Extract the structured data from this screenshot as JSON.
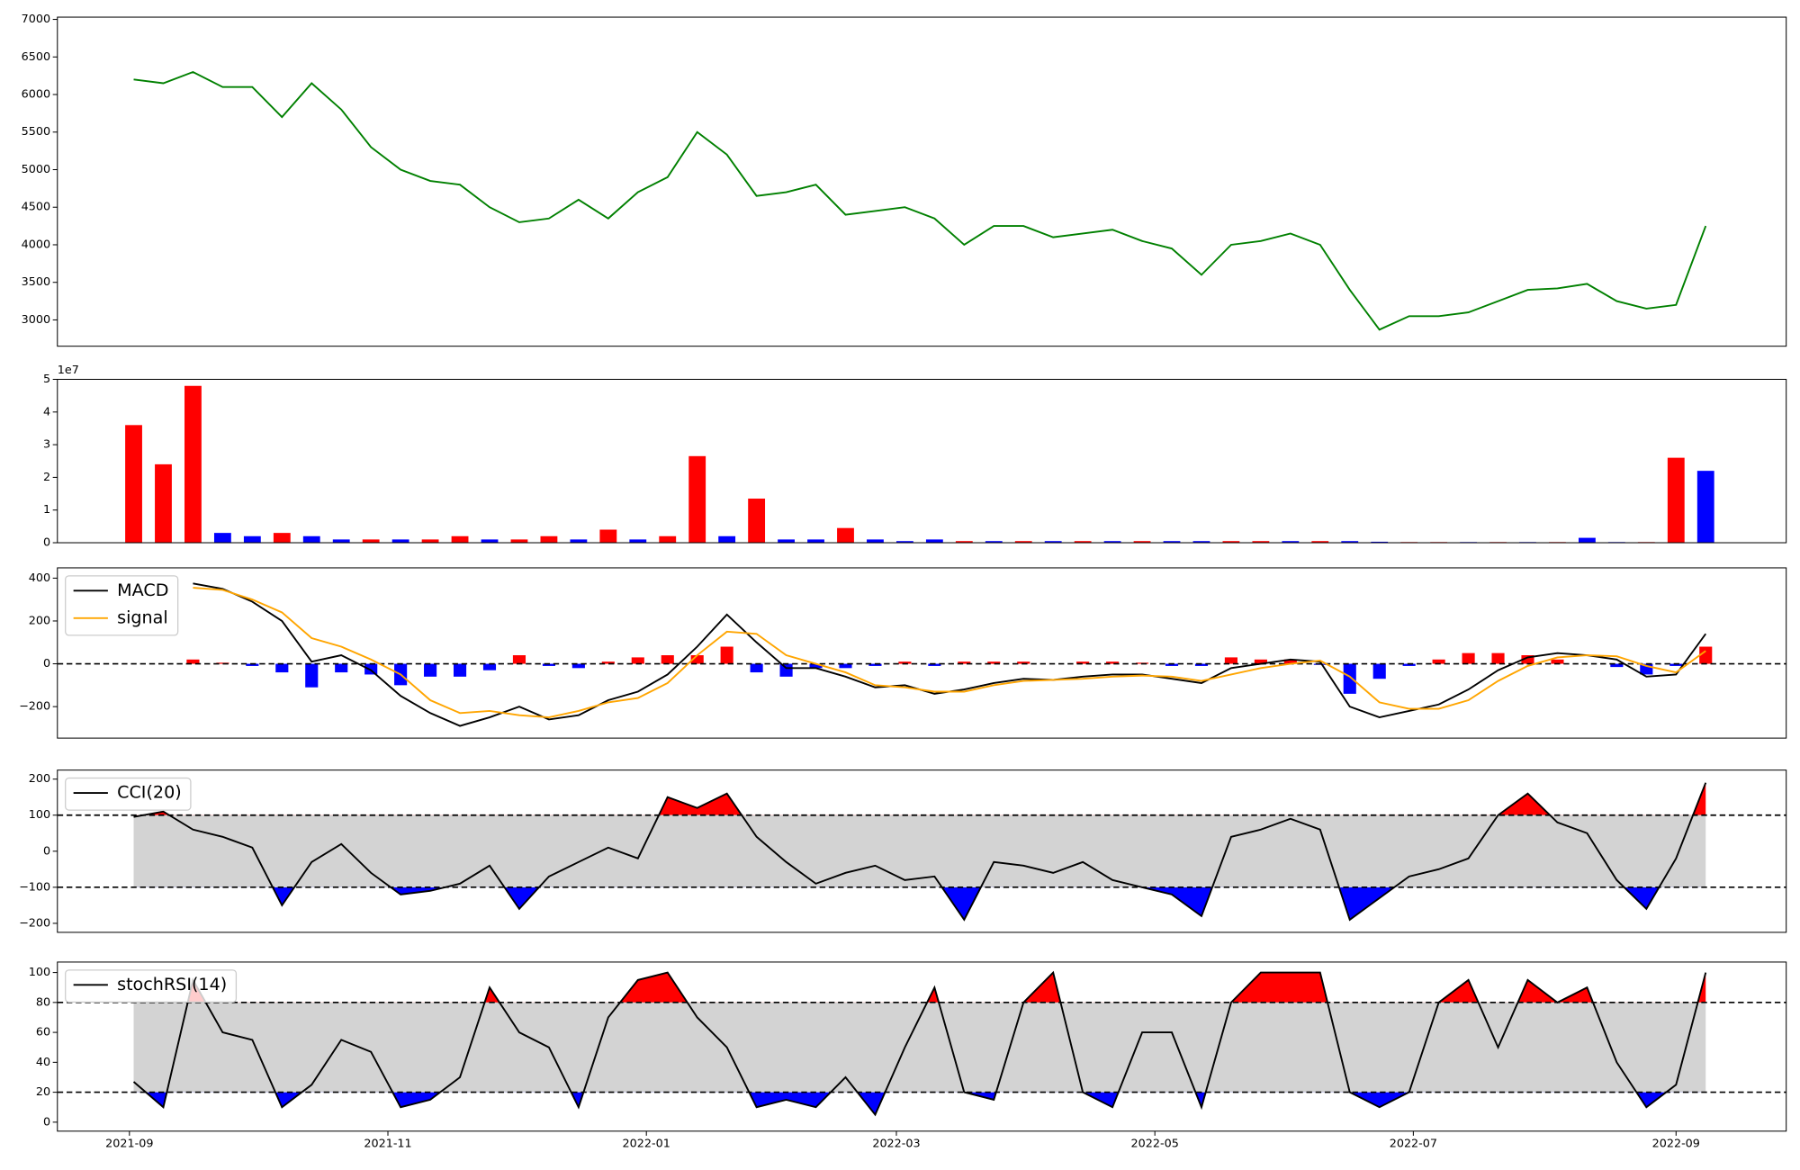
{
  "chart_data": [
    {
      "type": "line",
      "color": "green",
      "x": [
        1,
        8,
        15,
        22,
        29,
        36,
        43,
        50,
        57,
        64,
        71,
        78,
        85,
        92,
        99,
        106,
        113,
        120,
        127,
        134,
        141,
        148,
        155,
        162,
        169,
        176,
        183,
        190,
        197,
        204,
        211,
        218,
        225,
        232,
        239,
        246,
        253,
        260,
        267,
        274,
        281,
        288,
        295,
        302,
        309,
        316,
        323,
        330,
        337,
        344,
        351,
        358,
        365,
        372
      ],
      "values": [
        6200,
        6150,
        6300,
        6100,
        6100,
        5700,
        6150,
        5800,
        5300,
        5000,
        4850,
        4800,
        4500,
        4300,
        4350,
        4600,
        4350,
        4700,
        4900,
        5500,
        5200,
        4650,
        4700,
        4800,
        4400,
        4450,
        4500,
        4350,
        4000,
        4250,
        4250,
        4100,
        4150,
        4200,
        4050,
        3950,
        3600,
        4000,
        4050,
        4150,
        4000,
        3400,
        2870,
        3050,
        3050,
        3100,
        3250,
        3400,
        3420,
        3480,
        3250,
        3150,
        3200,
        4250
      ],
      "xlim": [
        -17,
        391
      ],
      "ylim": [
        2650,
        7030
      ],
      "yticks": [
        3000,
        3500,
        4000,
        4500,
        5000,
        5500,
        6000,
        6500,
        7000
      ]
    },
    {
      "type": "bar",
      "scale_label": "1e7",
      "x": [
        1,
        8,
        15,
        22,
        29,
        36,
        43,
        50,
        57,
        64,
        71,
        78,
        85,
        92,
        99,
        106,
        113,
        120,
        127,
        134,
        141,
        148,
        155,
        162,
        169,
        176,
        183,
        190,
        197,
        204,
        211,
        218,
        225,
        232,
        239,
        246,
        253,
        260,
        267,
        274,
        281,
        288,
        295,
        302,
        309,
        316,
        323,
        330,
        337,
        344,
        351,
        358,
        365,
        372
      ],
      "values": [
        3.6,
        2.4,
        4.8,
        0.3,
        0.2,
        0.3,
        0.2,
        0.1,
        0.1,
        0.1,
        0.1,
        0.2,
        0.1,
        0.1,
        0.2,
        0.1,
        0.4,
        0.1,
        0.2,
        2.65,
        0.2,
        1.35,
        0.1,
        0.1,
        0.45,
        0.1,
        0.05,
        0.1,
        0.05,
        0.05,
        0.05,
        0.05,
        0.05,
        0.05,
        0.05,
        0.05,
        0.05,
        0.05,
        0.05,
        0.05,
        0.05,
        0.05,
        0.03,
        0.02,
        0.02,
        0.02,
        0.02,
        0.02,
        0.02,
        0.15,
        0.02,
        0.02,
        2.6,
        2.2
      ],
      "colors": [
        "red",
        "red",
        "red",
        "blue",
        "blue",
        "red",
        "blue",
        "blue",
        "red",
        "blue",
        "red",
        "red",
        "blue",
        "red",
        "red",
        "blue",
        "red",
        "blue",
        "red",
        "red",
        "blue",
        "red",
        "blue",
        "blue",
        "red",
        "blue",
        "blue",
        "blue",
        "red",
        "blue",
        "red",
        "blue",
        "red",
        "blue",
        "red",
        "blue",
        "blue",
        "red",
        "red",
        "blue",
        "red",
        "blue",
        "blue",
        "red",
        "red",
        "blue",
        "red",
        "blue",
        "red",
        "blue",
        "blue",
        "red",
        "red",
        "blue"
      ],
      "xlim": [
        -17,
        391
      ],
      "ylim": [
        0,
        5
      ],
      "yticks": [
        0,
        1,
        2,
        3,
        4,
        5
      ]
    },
    {
      "type": "macd",
      "legend": "upper left",
      "x": [
        1,
        8,
        15,
        22,
        29,
        36,
        43,
        50,
        57,
        64,
        71,
        78,
        85,
        92,
        99,
        106,
        113,
        120,
        127,
        134,
        141,
        148,
        155,
        162,
        169,
        176,
        183,
        190,
        197,
        204,
        211,
        218,
        225,
        232,
        239,
        246,
        253,
        260,
        267,
        274,
        281,
        288,
        295,
        302,
        309,
        316,
        323,
        330,
        337,
        344,
        351,
        358,
        365,
        372
      ],
      "series": [
        {
          "name": "MACD",
          "color": "black",
          "values": [
            null,
            null,
            375,
            350,
            290,
            200,
            10,
            40,
            -30,
            -150,
            -230,
            -290,
            -250,
            -200,
            -260,
            -240,
            -170,
            -130,
            -50,
            80,
            230,
            100,
            -20,
            -20,
            -60,
            -110,
            -100,
            -140,
            -120,
            -90,
            -70,
            -75,
            -60,
            -50,
            -50,
            -70,
            -90,
            -20,
            0,
            20,
            10,
            -200,
            -250,
            -220,
            -190,
            -120,
            -30,
            30,
            50,
            40,
            20,
            -60,
            -50,
            140
          ]
        },
        {
          "name": "signal",
          "color": "orange",
          "values": [
            null,
            null,
            355,
            345,
            300,
            240,
            120,
            80,
            20,
            -50,
            -170,
            -230,
            -220,
            -240,
            -250,
            -220,
            -180,
            -160,
            -90,
            40,
            150,
            140,
            40,
            0,
            -40,
            -100,
            -110,
            -130,
            -130,
            -100,
            -80,
            -75,
            -70,
            -60,
            -55,
            -60,
            -80,
            -50,
            -20,
            0,
            15,
            -60,
            -180,
            -210,
            -210,
            -170,
            -80,
            -10,
            30,
            40,
            35,
            -10,
            -40,
            60
          ]
        }
      ],
      "histogram": {
        "up_color": "red",
        "down_color": "blue",
        "values": [
          null,
          null,
          20,
          5,
          -10,
          -40,
          -110,
          -40,
          -50,
          -100,
          -60,
          -60,
          -30,
          40,
          -10,
          -20,
          10,
          30,
          40,
          40,
          80,
          -40,
          -60,
          -20,
          -20,
          -10,
          10,
          -10,
          10,
          10,
          10,
          0,
          10,
          10,
          5,
          -10,
          -10,
          30,
          20,
          20,
          -5,
          -140,
          -70,
          -10,
          20,
          50,
          50,
          40,
          20,
          0,
          -15,
          -50,
          -10,
          80
        ]
      },
      "hlines": [
        0
      ],
      "xlim": [
        -17,
        391
      ],
      "ylim": [
        -347,
        448
      ],
      "yticks": [
        {
          "value": -200,
          "label": "−200"
        },
        0,
        200,
        400
      ]
    },
    {
      "type": "band",
      "legend": "upper left",
      "x": [
        1,
        8,
        15,
        22,
        29,
        36,
        43,
        50,
        57,
        64,
        71,
        78,
        85,
        92,
        99,
        106,
        113,
        120,
        127,
        134,
        141,
        148,
        155,
        162,
        169,
        176,
        183,
        190,
        197,
        204,
        211,
        218,
        225,
        232,
        239,
        246,
        253,
        260,
        267,
        274,
        281,
        288,
        295,
        302,
        309,
        316,
        323,
        330,
        337,
        344,
        351,
        358,
        365,
        372
      ],
      "series": [
        {
          "name": "CCI(20)",
          "color": "black",
          "values": [
            95,
            110,
            60,
            40,
            10,
            -150,
            -30,
            20,
            -60,
            -120,
            -110,
            -90,
            -40,
            -160,
            -70,
            -30,
            10,
            -20,
            150,
            120,
            160,
            40,
            -30,
            -90,
            -60,
            -40,
            -80,
            -70,
            -190,
            -30,
            -40,
            -60,
            -30,
            -80,
            -100,
            -120,
            -180,
            40,
            60,
            90,
            60,
            -190,
            -130,
            -70,
            -50,
            -20,
            100,
            160,
            80,
            50,
            -80,
            -160,
            -20,
            190
          ]
        }
      ],
      "bands": {
        "upper": 100,
        "lower": -100,
        "upper_color": "red",
        "lower_color": "blue",
        "mid_color": "lightgray"
      },
      "xlim": [
        -17,
        391
      ],
      "ylim": [
        -225,
        225
      ],
      "yticks": [
        {
          "value": -200,
          "label": "−200"
        },
        {
          "value": -100,
          "label": "−100"
        },
        0,
        100,
        200
      ]
    },
    {
      "type": "band",
      "legend": "upper left",
      "x": [
        1,
        8,
        15,
        22,
        29,
        36,
        43,
        50,
        57,
        64,
        71,
        78,
        85,
        92,
        99,
        106,
        113,
        120,
        127,
        134,
        141,
        148,
        155,
        162,
        169,
        176,
        183,
        190,
        197,
        204,
        211,
        218,
        225,
        232,
        239,
        246,
        253,
        260,
        267,
        274,
        281,
        288,
        295,
        302,
        309,
        316,
        323,
        330,
        337,
        344,
        351,
        358,
        365,
        372
      ],
      "series": [
        {
          "name": "stochRSI(14)",
          "color": "black",
          "values": [
            27,
            10,
            95,
            60,
            55,
            10,
            25,
            55,
            47,
            10,
            15,
            30,
            90,
            60,
            50,
            10,
            70,
            95,
            100,
            70,
            50,
            10,
            15,
            10,
            30,
            5,
            50,
            90,
            20,
            15,
            80,
            100,
            20,
            10,
            60,
            60,
            10,
            80,
            100,
            100,
            100,
            20,
            10,
            20,
            80,
            95,
            50,
            95,
            80,
            90,
            40,
            10,
            25,
            100
          ]
        }
      ],
      "bands": {
        "upper": 80,
        "lower": 20,
        "upper_color": "red",
        "lower_color": "blue",
        "mid_color": "lightgray"
      },
      "xlim": [
        -17,
        391
      ],
      "ylim": [
        -6,
        107
      ],
      "yticks": [
        0,
        20,
        40,
        60,
        80,
        100
      ],
      "xticks": [
        {
          "value": 0,
          "label": "2021-09"
        },
        {
          "value": 61,
          "label": "2021-11"
        },
        {
          "value": 122,
          "label": "2022-01"
        },
        {
          "value": 181,
          "label": "2022-03"
        },
        {
          "value": 242,
          "label": "2022-05"
        },
        {
          "value": 303,
          "label": "2022-07"
        },
        {
          "value": 365,
          "label": "2022-09"
        }
      ]
    }
  ]
}
